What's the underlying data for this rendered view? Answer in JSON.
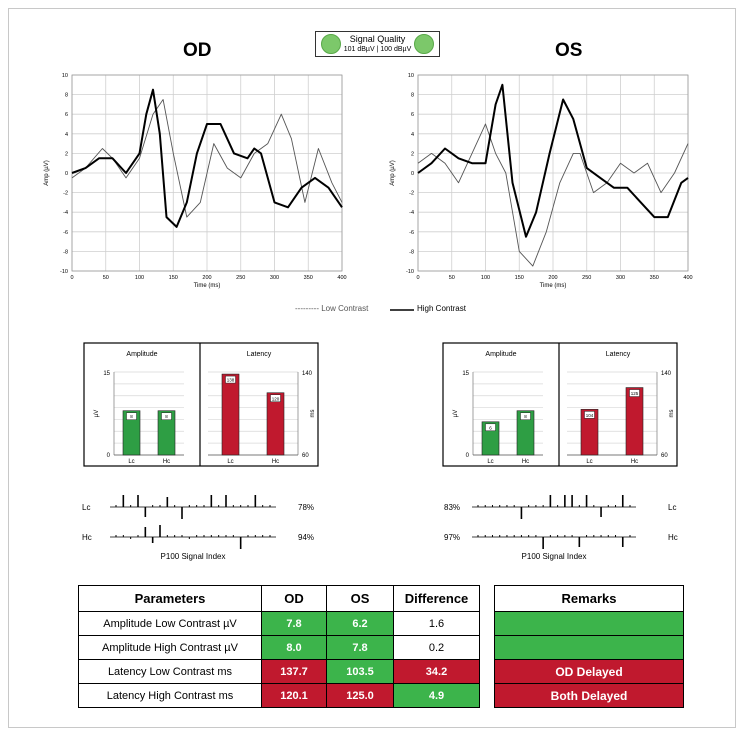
{
  "header": {
    "od_label": "OD",
    "os_label": "OS",
    "signal_quality": {
      "title": "Signal Quality",
      "values": "101 dBµV  |  100 dBµV",
      "indicator_color": "#7cc86a"
    }
  },
  "legend": {
    "low_contrast": "--------- Low Contrast",
    "high_contrast": "High Contrast"
  },
  "chart_data": [
    {
      "type": "line",
      "title": "OD",
      "xlabel": "Time (ms)",
      "ylabel": "Amp (µV)",
      "xlim": [
        0,
        400
      ],
      "ylim": [
        -10,
        10
      ],
      "xticks": [
        0,
        50,
        100,
        150,
        200,
        250,
        300,
        350,
        400
      ],
      "yticks": [
        -10,
        -8,
        -6,
        -4,
        -2,
        0,
        2,
        4,
        6,
        8,
        10
      ],
      "grid": true,
      "series": [
        {
          "name": "Low Contrast",
          "style": "thin",
          "x": [
            0,
            20,
            45,
            60,
            80,
            100,
            120,
            135,
            150,
            170,
            190,
            210,
            230,
            250,
            270,
            290,
            310,
            325,
            345,
            365,
            385,
            400
          ],
          "y": [
            -0.5,
            0.5,
            2.5,
            1.5,
            -0.5,
            1.5,
            6,
            7.5,
            2,
            -4.5,
            -3,
            3,
            0.5,
            -0.5,
            2,
            3,
            6,
            3.5,
            -3,
            2.5,
            -1,
            -3
          ]
        },
        {
          "name": "High Contrast",
          "style": "thick",
          "x": [
            0,
            20,
            40,
            60,
            80,
            100,
            110,
            120,
            130,
            140,
            155,
            170,
            185,
            200,
            220,
            240,
            260,
            270,
            280,
            300,
            320,
            340,
            360,
            380,
            400
          ],
          "y": [
            0,
            0.5,
            1.5,
            1.5,
            0,
            2,
            6,
            8.5,
            4,
            -4.5,
            -5.5,
            -3,
            2,
            5,
            5,
            2,
            1.5,
            2.5,
            2,
            -3,
            -3.5,
            -1.5,
            -0.5,
            -1.5,
            -3.5
          ]
        }
      ]
    },
    {
      "type": "line",
      "title": "OS",
      "xlabel": "Time (ms)",
      "ylabel": "Amp (µV)",
      "xlim": [
        0,
        400
      ],
      "ylim": [
        -10,
        10
      ],
      "xticks": [
        0,
        50,
        100,
        150,
        200,
        250,
        300,
        350,
        400
      ],
      "yticks": [
        -10,
        -8,
        -6,
        -4,
        -2,
        0,
        2,
        4,
        6,
        8,
        10
      ],
      "grid": true,
      "series": [
        {
          "name": "Low Contrast",
          "style": "thin",
          "x": [
            0,
            20,
            40,
            60,
            80,
            100,
            115,
            130,
            150,
            170,
            190,
            210,
            230,
            240,
            260,
            280,
            300,
            320,
            340,
            360,
            380,
            400
          ],
          "y": [
            1,
            2,
            1,
            -1,
            2,
            5,
            2,
            0,
            -8,
            -9.5,
            -6,
            -1,
            2,
            2,
            -2,
            -1,
            1,
            0,
            1,
            -2,
            0,
            3
          ]
        },
        {
          "name": "High Contrast",
          "style": "thick",
          "x": [
            0,
            20,
            40,
            60,
            80,
            100,
            115,
            125,
            140,
            160,
            175,
            195,
            215,
            230,
            250,
            270,
            290,
            310,
            330,
            350,
            370,
            390,
            400
          ],
          "y": [
            0,
            1,
            2.5,
            1.5,
            1,
            1,
            7,
            9,
            -1,
            -6.5,
            -4,
            2,
            7.5,
            5.5,
            0.5,
            -0.5,
            -1.5,
            -1.5,
            -3,
            -4.5,
            -4.5,
            -1,
            -0.5
          ]
        }
      ]
    },
    {
      "type": "bar",
      "title": "Amplitude",
      "eye": "OD",
      "ylabel": "µV",
      "categories": [
        "Lc",
        "Hc"
      ],
      "values": [
        8,
        8
      ],
      "ylim": [
        0,
        15
      ],
      "yticks": [
        0,
        15
      ],
      "color": "#2e9e44"
    },
    {
      "type": "bar",
      "title": "Latency",
      "eye": "OD",
      "ylabel": "ms",
      "categories": [
        "Lc",
        "Hc"
      ],
      "values": [
        138,
        120
      ],
      "ylim": [
        60,
        140
      ],
      "yticks": [
        60,
        140
      ],
      "color": "#c0192e"
    },
    {
      "type": "bar",
      "title": "Amplitude",
      "eye": "OS",
      "ylabel": "µV",
      "categories": [
        "Lc",
        "Hc"
      ],
      "values": [
        6,
        8
      ],
      "ylim": [
        0,
        15
      ],
      "yticks": [
        0,
        15
      ],
      "color": "#2e9e44"
    },
    {
      "type": "bar",
      "title": "Latency",
      "eye": "OS",
      "ylabel": "ms",
      "categories": [
        "Lc",
        "Hc"
      ],
      "values": [
        104,
        125
      ],
      "ylim": [
        60,
        140
      ],
      "yticks": [
        60,
        140
      ],
      "color": "#c0192e"
    }
  ],
  "signal_index": {
    "title": "P100 Signal Index",
    "row_labels": [
      "Lc",
      "Hc"
    ],
    "od": {
      "lc_pct": "78%",
      "hc_pct": "94%"
    },
    "os": {
      "lc_pct": "83%",
      "hc_pct": "97%"
    }
  },
  "params_table": {
    "headers": [
      "Parameters",
      "OD",
      "OS",
      "Difference"
    ],
    "rows": [
      {
        "param": "Amplitude Low Contrast  µV",
        "od": "7.8",
        "os": "6.2",
        "diff": "1.6"
      },
      {
        "param": "Amplitude High Contrast  µV",
        "od": "8.0",
        "os": "7.8",
        "diff": "0.2"
      },
      {
        "param": "Latency Low Contrast  ms",
        "od": "137.7",
        "os": "103.5",
        "diff": "34.2"
      },
      {
        "param": "Latency High Contrast  ms",
        "od": "120.1",
        "os": "125.0",
        "diff": "4.9"
      }
    ]
  },
  "remarks": {
    "header": "Remarks",
    "rows": [
      "",
      "",
      "OD Delayed",
      "Both Delayed"
    ]
  },
  "colors": {
    "green": "#3cb44b",
    "red": "#c0192e"
  }
}
